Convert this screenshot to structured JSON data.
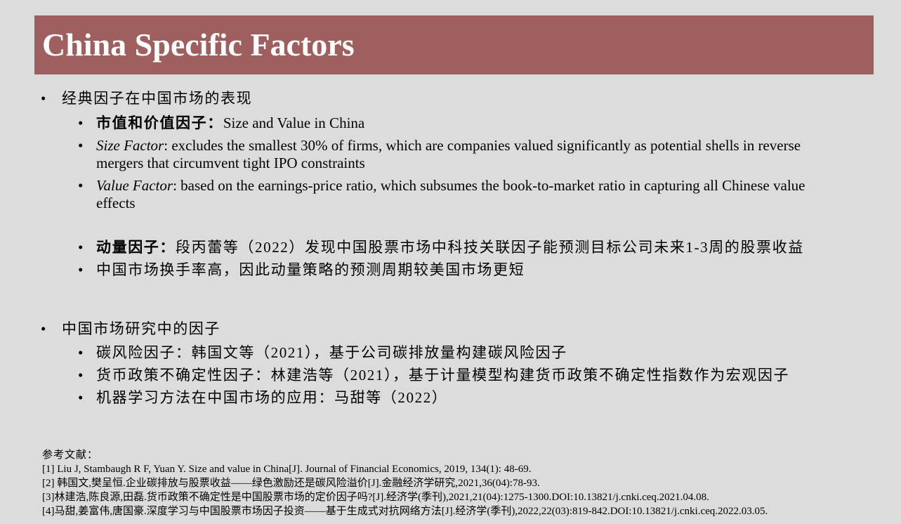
{
  "title": "China Specific Factors",
  "section1": {
    "heading": "经典因子在中国市场的表现",
    "items": [
      {
        "label": "市值和价值因子：",
        "text": "Size and Value in China"
      },
      {
        "label": "Size Factor",
        "text": ": excludes the smallest 30% of firms, which are companies valued significantly as potential shells in reverse mergers that circumvent tight IPO constraints"
      },
      {
        "label": "Value Factor",
        "text": ": based on the earnings-price ratio, which subsumes the book-to-market ratio in capturing all Chinese value effects"
      },
      {
        "label": "动量因子：",
        "text": "段丙蕾等（2022）发现中国股票市场中科技关联因子能预测目标公司未来1-3周的股票收益"
      },
      {
        "text": "中国市场换手率高，因此动量策略的预测周期较美国市场更短"
      }
    ]
  },
  "section2": {
    "heading": "中国市场研究中的因子",
    "items": [
      {
        "text": "碳风险因子：韩国文等（2021），基于公司碳排放量构建碳风险因子"
      },
      {
        "text": "货币政策不确定性因子：林建浩等（2021），基于计量模型构建货币政策不确定性指数作为宏观因子"
      },
      {
        "text": "机器学习方法在中国市场的应用：马甜等（2022）"
      }
    ]
  },
  "references": {
    "heading": "参考文献：",
    "items": [
      "[1] Liu J, Stambaugh R F, Yuan Y. Size and value in China[J]. Journal of Financial Economics, 2019, 134(1): 48-69.",
      "[2] 韩国文,樊呈恒.企业碳排放与股票收益——绿色激励还是碳风险溢价[J].金融经济学研究,2021,36(04):78-93.",
      "[3]林建浩,陈良源,田磊.货币政策不确定性是中国股票市场的定价因子吗?[J].经济学(季刊),2021,21(04):1275-1300.DOI:10.13821/j.cnki.ceq.2021.04.08.",
      "[4]马甜,姜富伟,唐国豪.深度学习与中国股票市场因子投资——基于生成式对抗网络方法[J].经济学(季刊),2022,22(03):819-842.DOI:10.13821/j.cnki.ceq.2022.03.05."
    ]
  }
}
